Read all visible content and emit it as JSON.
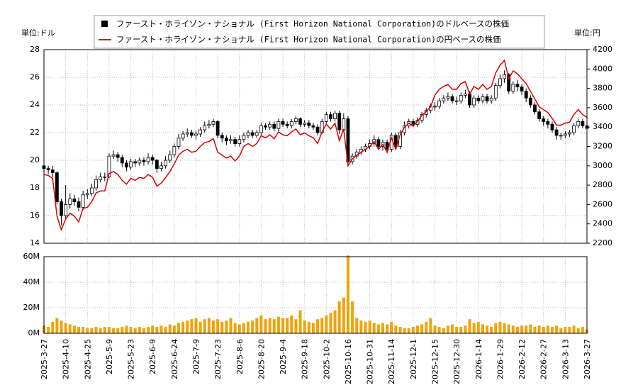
{
  "chart_data": [
    {
      "type": "candlestick",
      "y_unit": "単位:ドル",
      "y2_unit": "単位:円",
      "ylim": [
        14,
        28
      ],
      "yticks": [
        14,
        16,
        18,
        20,
        22,
        24,
        26,
        28
      ],
      "y2lim": [
        2200,
        4200
      ],
      "y2ticks": [
        2200,
        2400,
        2600,
        2800,
        3000,
        3200,
        3400,
        3600,
        3800,
        4000,
        4200
      ],
      "grid": true,
      "series": [
        {
          "name": "ファースト・ホライゾン・ナショナル (First Horizon National Corporation)のドルベースの株価",
          "color": "#000000",
          "up_color": "#ffffff",
          "open": [
            19.6,
            19.4,
            19.3,
            19.1,
            17.0,
            16.0,
            16.8,
            17.2,
            17.0,
            16.6,
            17.5,
            17.6,
            18.0,
            18.6,
            18.8,
            18.8,
            20.3,
            20.4,
            20.2,
            19.8,
            19.5,
            19.9,
            19.8,
            20.0,
            19.9,
            20.2,
            20.0,
            19.4,
            19.6,
            20.0,
            20.4,
            21.0,
            21.6,
            21.9,
            22.0,
            21.8,
            21.9,
            22.2,
            22.5,
            22.6,
            22.8,
            21.8,
            21.6,
            21.4,
            21.5,
            21.2,
            21.5,
            21.8,
            22.0,
            21.8,
            22.0,
            22.5,
            22.4,
            22.6,
            22.3,
            22.8,
            22.6,
            22.5,
            22.8,
            23.0,
            22.6,
            22.7,
            22.5,
            22.4,
            22.0,
            22.8,
            23.3,
            23.0,
            23.4,
            22.2,
            23.0,
            19.9,
            20.3,
            20.6,
            20.8,
            21.0,
            21.2,
            21.5,
            21.0,
            21.3,
            20.8,
            21.8,
            21.0,
            22.0,
            22.5,
            22.8,
            22.6,
            22.9,
            23.3,
            23.6,
            23.9,
            23.9,
            24.3,
            24.5,
            24.6,
            24.3,
            24.3,
            24.7,
            24.8,
            24.0,
            24.5,
            24.3,
            24.6,
            24.3,
            24.5,
            25.4,
            25.9,
            26.2,
            25.0,
            25.5,
            25.3,
            25.0,
            24.5,
            24.0,
            23.5,
            23.0,
            22.8,
            22.6,
            22.2,
            21.8,
            21.8,
            21.9,
            22.0,
            22.5,
            22.8,
            22.5
          ],
          "high": [
            19.8,
            19.6,
            19.6,
            19.2,
            17.2,
            18.2,
            17.6,
            17.5,
            17.3,
            17.8,
            17.9,
            18.3,
            18.9,
            19.1,
            19.1,
            20.5,
            20.7,
            20.6,
            20.4,
            20.0,
            20.1,
            20.1,
            20.2,
            20.2,
            20.5,
            20.4,
            20.1,
            19.9,
            20.3,
            20.7,
            21.2,
            21.9,
            22.1,
            22.3,
            22.2,
            22.1,
            22.4,
            22.8,
            22.9,
            23.0,
            22.9,
            22.0,
            21.8,
            21.8,
            21.7,
            21.8,
            22.0,
            22.2,
            22.2,
            22.2,
            22.7,
            22.7,
            22.8,
            22.8,
            23.0,
            23.0,
            22.8,
            23.0,
            23.2,
            23.1,
            22.9,
            22.9,
            22.7,
            22.6,
            23.0,
            23.5,
            23.5,
            23.6,
            23.6,
            23.4,
            23.2,
            20.5,
            20.8,
            21.0,
            21.2,
            21.5,
            21.8,
            21.7,
            21.5,
            21.5,
            22.0,
            22.0,
            22.2,
            22.8,
            23.0,
            23.0,
            23.1,
            23.5,
            23.8,
            24.1,
            24.2,
            24.5,
            24.7,
            24.9,
            24.8,
            24.6,
            24.9,
            25.1,
            25.0,
            24.7,
            24.7,
            24.8,
            24.8,
            24.7,
            25.6,
            26.2,
            26.5,
            26.3,
            25.7,
            25.8,
            25.5,
            25.2,
            24.7,
            24.2,
            23.7,
            23.2,
            23.0,
            22.8,
            22.4,
            22.0,
            22.1,
            22.2,
            22.7,
            23.0,
            23.0,
            22.7
          ],
          "low": [
            19.2,
            19.0,
            18.8,
            16.8,
            15.3,
            15.8,
            16.5,
            16.7,
            16.3,
            16.4,
            17.2,
            17.4,
            17.8,
            18.4,
            18.5,
            18.7,
            20.1,
            19.9,
            19.5,
            19.2,
            19.3,
            19.5,
            19.6,
            19.6,
            19.7,
            19.7,
            19.1,
            19.2,
            19.4,
            19.8,
            20.2,
            20.8,
            21.4,
            21.7,
            21.6,
            21.5,
            21.7,
            22.0,
            22.3,
            22.4,
            21.6,
            21.3,
            21.1,
            21.2,
            21.0,
            21.0,
            21.3,
            21.6,
            21.6,
            21.6,
            21.8,
            22.2,
            22.2,
            22.1,
            22.1,
            22.4,
            22.3,
            22.3,
            22.6,
            22.4,
            22.4,
            22.3,
            22.2,
            21.8,
            21.9,
            22.6,
            22.8,
            22.8,
            21.9,
            22.0,
            19.6,
            19.7,
            20.1,
            20.4,
            20.6,
            20.8,
            21.0,
            20.8,
            20.7,
            20.5,
            20.6,
            20.8,
            20.8,
            21.8,
            22.3,
            22.4,
            22.4,
            22.7,
            23.1,
            23.4,
            23.6,
            23.7,
            24.1,
            24.3,
            24.1,
            24.0,
            24.1,
            24.5,
            23.8,
            23.8,
            24.1,
            24.1,
            24.1,
            24.1,
            24.3,
            25.2,
            25.6,
            24.8,
            24.8,
            25.0,
            24.7,
            24.2,
            23.8,
            23.3,
            22.8,
            22.5,
            22.3,
            22.0,
            21.5,
            21.5,
            21.6,
            21.7,
            21.8,
            22.3,
            22.3,
            22.0
          ],
          "close": [
            19.4,
            19.3,
            19.1,
            17.0,
            16.0,
            16.8,
            17.2,
            17.0,
            16.6,
            17.5,
            17.6,
            18.0,
            18.6,
            18.8,
            18.8,
            20.3,
            20.4,
            20.2,
            19.8,
            19.5,
            19.9,
            19.8,
            20.0,
            19.9,
            20.2,
            20.0,
            19.4,
            19.6,
            20.0,
            20.4,
            21.0,
            21.6,
            21.9,
            22.0,
            21.8,
            21.9,
            22.2,
            22.5,
            22.6,
            22.8,
            21.8,
            21.6,
            21.4,
            21.5,
            21.2,
            21.5,
            21.8,
            22.0,
            21.8,
            22.0,
            22.5,
            22.4,
            22.6,
            22.3,
            22.8,
            22.6,
            22.5,
            22.8,
            23.0,
            22.6,
            22.7,
            22.5,
            22.4,
            22.0,
            22.8,
            23.3,
            23.0,
            23.4,
            22.2,
            23.0,
            19.9,
            20.3,
            20.6,
            20.8,
            21.0,
            21.2,
            21.5,
            21.0,
            21.3,
            20.8,
            21.8,
            21.0,
            22.0,
            22.5,
            22.8,
            22.6,
            22.9,
            23.3,
            23.6,
            23.9,
            23.9,
            24.3,
            24.5,
            24.6,
            24.3,
            24.3,
            24.7,
            24.8,
            24.0,
            24.5,
            24.3,
            24.6,
            24.3,
            24.5,
            25.4,
            25.9,
            26.2,
            25.0,
            25.5,
            25.3,
            25.0,
            24.5,
            24.0,
            23.5,
            23.0,
            22.8,
            22.6,
            22.2,
            21.8,
            21.8,
            21.9,
            22.0,
            22.5,
            22.8,
            22.5,
            22.3
          ]
        },
        {
          "name": "ファースト・ホライゾン・ナショナル (First Horizon National Corporation)の円ベースの株価",
          "color": "#dd0000",
          "axis": "y2",
          "values": [
            2910,
            2900,
            2870,
            2480,
            2340,
            2450,
            2510,
            2480,
            2420,
            2560,
            2570,
            2630,
            2720,
            2740,
            2740,
            2920,
            2940,
            2910,
            2850,
            2810,
            2870,
            2850,
            2880,
            2870,
            2910,
            2880,
            2790,
            2820,
            2880,
            2940,
            3020,
            3110,
            3150,
            3170,
            3140,
            3150,
            3200,
            3240,
            3250,
            3280,
            3140,
            3110,
            3080,
            3100,
            3050,
            3100,
            3200,
            3230,
            3200,
            3230,
            3310,
            3290,
            3320,
            3280,
            3350,
            3320,
            3310,
            3350,
            3380,
            3320,
            3340,
            3310,
            3290,
            3230,
            3350,
            3430,
            3380,
            3440,
            3260,
            3380,
            3000,
            3070,
            3110,
            3140,
            3170,
            3200,
            3250,
            3170,
            3220,
            3140,
            3290,
            3170,
            3320,
            3400,
            3440,
            3410,
            3460,
            3520,
            3560,
            3610,
            3730,
            3790,
            3820,
            3840,
            3790,
            3790,
            3850,
            3870,
            3740,
            3820,
            3790,
            3840,
            3790,
            3820,
            3960,
            4040,
            4090,
            3900,
            3980,
            3950,
            3900,
            3850,
            3770,
            3690,
            3610,
            3580,
            3550,
            3490,
            3420,
            3420,
            3440,
            3450,
            3530,
            3580,
            3530,
            3500
          ]
        }
      ]
    },
    {
      "type": "bar",
      "color": "#f0a30a",
      "grid": true,
      "ylim": [
        0,
        60000000
      ],
      "yticks": [
        {
          "value": 0,
          "label": "0M"
        },
        {
          "value": 20000000,
          "label": "20M"
        },
        {
          "value": 40000000,
          "label": "40M"
        },
        {
          "value": 60000000,
          "label": "60M"
        }
      ],
      "categories": [
        "2025-3-27",
        null,
        null,
        null,
        null,
        "2025-4-10",
        null,
        null,
        null,
        null,
        "2025-4-25",
        null,
        null,
        null,
        null,
        "2025-5-9",
        null,
        null,
        null,
        null,
        "2025-5-23",
        null,
        null,
        null,
        null,
        "2025-6-9",
        null,
        null,
        null,
        null,
        "2025-6-24",
        null,
        null,
        null,
        null,
        "2025-7-9",
        null,
        null,
        null,
        null,
        "2025-7-23",
        null,
        null,
        null,
        null,
        "2025-8-6",
        null,
        null,
        null,
        null,
        "2025-8-20",
        null,
        null,
        null,
        null,
        "2025-9-4",
        null,
        null,
        null,
        null,
        "2025-9-18",
        null,
        null,
        null,
        null,
        "2025-10-2",
        null,
        null,
        null,
        null,
        "2025-10-16",
        null,
        null,
        null,
        null,
        "2025-10-31",
        null,
        null,
        null,
        null,
        "2025-11-14",
        null,
        null,
        null,
        null,
        "2025-12-1",
        null,
        null,
        null,
        null,
        "2025-12-15",
        null,
        null,
        null,
        null,
        "2025-12-30",
        null,
        null,
        null,
        null,
        "2026-1-14",
        null,
        null,
        null,
        null,
        "2026-1-29",
        null,
        null,
        null,
        null,
        "2026-2-12",
        null,
        null,
        null,
        null,
        "2026-2-27",
        null,
        null,
        null,
        null,
        "2026-3-13",
        null,
        null,
        null,
        null,
        "2026-3-27"
      ],
      "values": [
        6000000,
        5000000,
        9000000,
        12000000,
        10000000,
        8000000,
        7000000,
        6000000,
        5000000,
        5000000,
        4000000,
        4000000,
        5000000,
        4000000,
        5000000,
        5000000,
        4000000,
        4000000,
        5000000,
        6000000,
        5000000,
        4000000,
        5000000,
        4000000,
        5000000,
        6000000,
        5000000,
        6000000,
        5000000,
        7000000,
        6000000,
        8000000,
        9000000,
        10000000,
        11000000,
        12000000,
        9000000,
        11000000,
        12000000,
        10000000,
        11000000,
        9000000,
        10000000,
        12000000,
        8000000,
        7000000,
        8000000,
        9000000,
        10000000,
        12000000,
        14000000,
        11000000,
        12000000,
        11000000,
        13000000,
        12000000,
        12000000,
        14000000,
        11000000,
        18000000,
        10000000,
        9000000,
        8000000,
        11000000,
        12000000,
        14000000,
        16000000,
        18000000,
        25000000,
        28000000,
        61000000,
        25000000,
        12000000,
        10000000,
        9000000,
        10000000,
        8000000,
        7000000,
        8000000,
        7000000,
        9000000,
        6000000,
        5000000,
        4000000,
        4000000,
        5000000,
        6000000,
        7000000,
        9000000,
        12000000,
        6000000,
        5000000,
        4000000,
        6000000,
        7000000,
        5000000,
        5000000,
        6000000,
        11000000,
        8000000,
        9000000,
        7000000,
        6000000,
        5000000,
        8000000,
        9000000,
        8000000,
        7000000,
        6000000,
        5000000,
        6000000,
        6000000,
        7000000,
        5000000,
        6000000,
        5000000,
        6000000,
        5000000,
        6000000,
        4000000,
        5000000,
        5000000,
        6000000,
        4000000,
        5000000,
        3000000
      ]
    }
  ]
}
